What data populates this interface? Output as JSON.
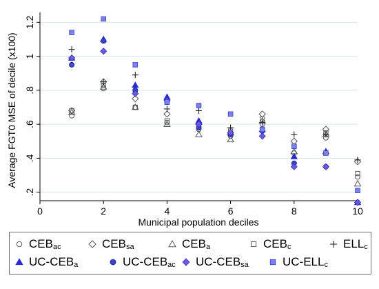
{
  "chart_data": {
    "type": "scatter",
    "xlabel": "Municipal population deciles",
    "ylabel": "Average FGT0 MSE of decile (x100)",
    "xlim": [
      0,
      10
    ],
    "ylim": [
      0.15,
      1.25
    ],
    "xticks": [
      0,
      2,
      4,
      6,
      8,
      10
    ],
    "xtick_labels": [
      "0",
      "2",
      "4",
      "6",
      "8",
      "10"
    ],
    "yticks": [
      0.2,
      0.4,
      0.6,
      0.8,
      1.0,
      1.2
    ],
    "ytick_labels": [
      ".2",
      ".4",
      ".6",
      ".8",
      "1",
      "1.2"
    ],
    "grid": "horizontal",
    "legend_position": "bottom",
    "x": [
      1,
      2,
      3,
      4,
      5,
      6,
      7,
      8,
      9,
      10
    ],
    "series": [
      {
        "name": "CEBac",
        "label_main": "CEB",
        "label_sub": "ac",
        "marker": "circle-open",
        "color": "#555555",
        "values": [
          0.65,
          0.81,
          0.7,
          0.61,
          0.57,
          0.53,
          0.6,
          0.43,
          0.52,
          0.29
        ]
      },
      {
        "name": "CEBsa",
        "label_main": "CEB",
        "label_sub": "sa",
        "marker": "diamond-open",
        "color": "#555555",
        "values": [
          0.68,
          0.85,
          0.75,
          0.66,
          0.6,
          0.55,
          0.66,
          0.5,
          0.57,
          0.38
        ]
      },
      {
        "name": "CEBa",
        "label_main": "CEB",
        "label_sub": "a",
        "marker": "triangle-open",
        "color": "#555555",
        "values": [
          0.67,
          0.82,
          0.7,
          0.6,
          0.54,
          0.51,
          0.62,
          0.44,
          0.54,
          0.25
        ]
      },
      {
        "name": "CEBc",
        "label_main": "CEB",
        "label_sub": "c",
        "marker": "square-open",
        "color": "#555555",
        "values": [
          0.68,
          0.83,
          0.7,
          0.62,
          0.58,
          0.56,
          0.63,
          0.47,
          0.55,
          0.31
        ]
      },
      {
        "name": "ELLc",
        "label_main": "ELL",
        "label_sub": "c",
        "marker": "plus",
        "color": "#222222",
        "values": [
          1.04,
          0.85,
          0.89,
          0.69,
          0.68,
          0.58,
          0.61,
          0.54,
          0.54,
          0.39
        ]
      },
      {
        "name": "UC-CEBa",
        "label_main": "UC-CEB",
        "label_sub": "a",
        "marker": "triangle-filled",
        "color": "#2b2bd6",
        "values": [
          0.99,
          1.1,
          0.83,
          0.76,
          0.62,
          0.55,
          0.57,
          0.41,
          0.44,
          0.14
        ]
      },
      {
        "name": "UC-CEBac",
        "label_main": "UC-CEB",
        "label_sub": "ac",
        "marker": "circle-filled",
        "color": "#3b44c8",
        "values": [
          0.95,
          1.09,
          0.8,
          0.73,
          0.58,
          0.54,
          0.56,
          0.37,
          0.35,
          0.14
        ]
      },
      {
        "name": "UC-CEBsa",
        "label_main": "UC-CEB",
        "label_sub": "sa",
        "marker": "diamond-filled",
        "color": "#6a5ae8",
        "values": [
          0.99,
          1.03,
          0.78,
          0.74,
          0.6,
          0.55,
          0.53,
          0.35,
          0.35,
          0.14
        ]
      },
      {
        "name": "UC-ELLc",
        "label_main": "UC-ELL",
        "label_sub": "c",
        "marker": "square-filled",
        "color": "#7a82f0",
        "values": [
          1.14,
          1.22,
          0.95,
          0.73,
          0.71,
          0.66,
          0.57,
          0.47,
          0.43,
          0.21
        ]
      }
    ]
  }
}
